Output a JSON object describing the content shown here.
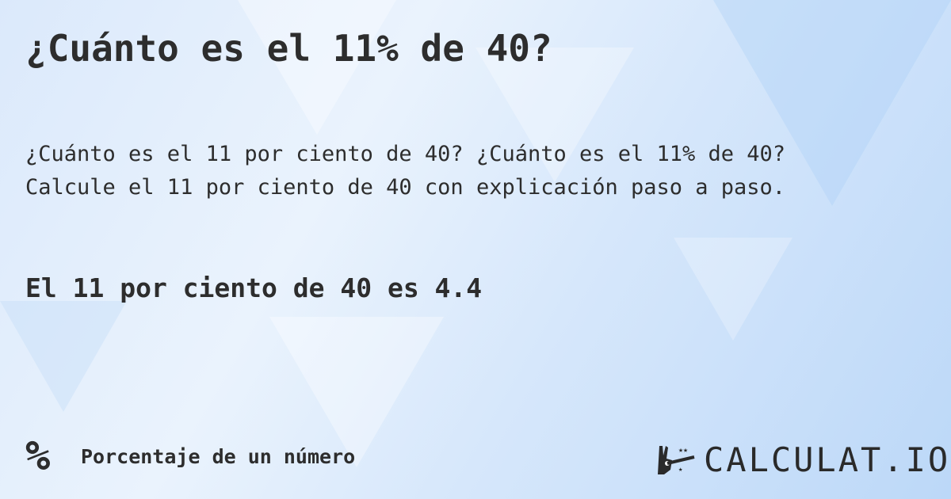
{
  "title": "¿Cuánto es el 11% de 40?",
  "description": [
    "¿Cuánto es el 11 por ciento de 40? ¿Cuánto es el 11% de 40?",
    "Calcule el 11 por ciento de 40 con explicación paso a paso."
  ],
  "result": "El 11 por ciento de 40 es 4.4",
  "category": {
    "icon": "percent-icon",
    "symbol": "%",
    "label": "Porcentaje de un número"
  },
  "logo": {
    "icon": "magic-wand-hand-icon",
    "text": "CALCULAT.IO"
  }
}
